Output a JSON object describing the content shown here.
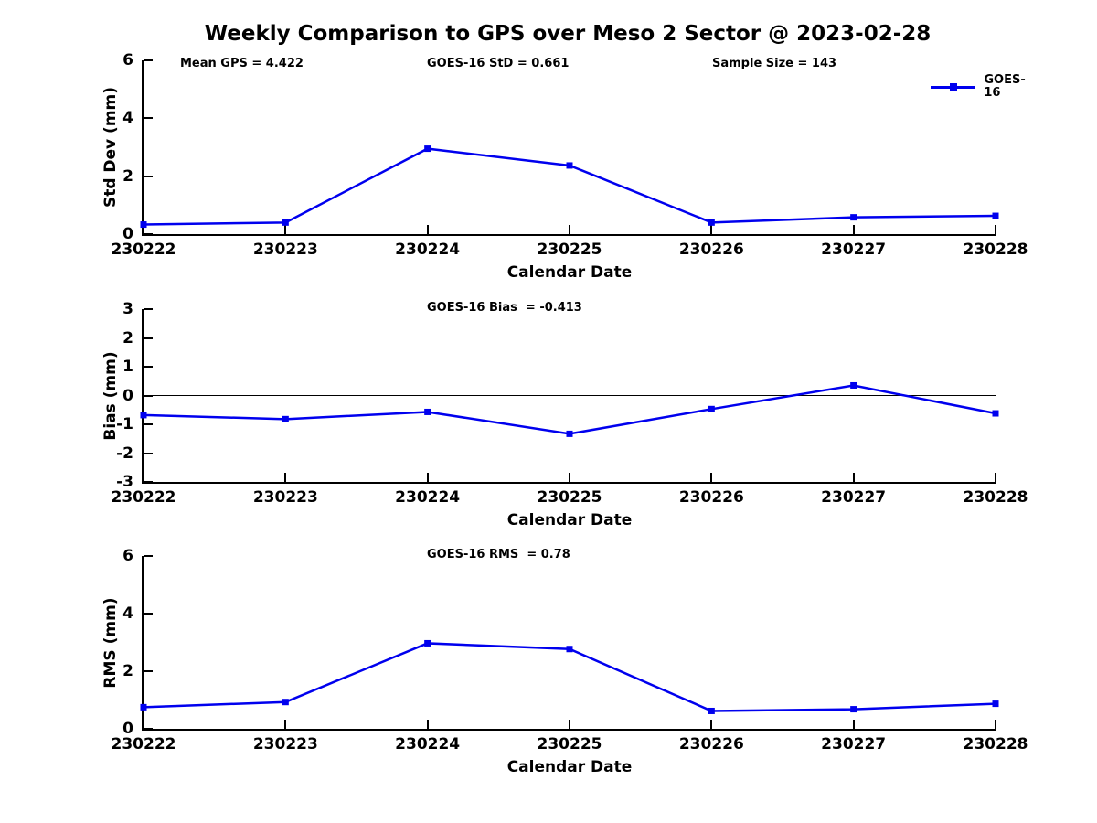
{
  "title": "Weekly Comparison to GPS over Meso 2 Sector @ 2023-02-28",
  "colors": {
    "series": "#0000EE",
    "axis": "#000000",
    "text": "#000000",
    "background": "#ffffff"
  },
  "legend": {
    "label": "GOES-16"
  },
  "chart_data": [
    {
      "type": "line",
      "name": "std-dev-panel",
      "annotations": [
        "Mean GPS = 4.422",
        "GOES-16 StD = 0.661",
        "Sample Size = 143"
      ],
      "categories": [
        "230222",
        "230223",
        "230224",
        "230225",
        "230226",
        "230227",
        "230228"
      ],
      "series": [
        {
          "name": "GOES-16",
          "values": [
            0.33,
            0.4,
            2.95,
            2.37,
            0.4,
            0.58,
            0.63
          ]
        }
      ],
      "xlabel": "Calendar Date",
      "ylabel": "Std Dev (mm)",
      "ylim": [
        0,
        6
      ],
      "yticks": [
        0,
        2,
        4,
        6
      ],
      "grid": false,
      "legend_visible": true,
      "legend_position": "top-right",
      "zero_line": false
    },
    {
      "type": "line",
      "name": "bias-panel",
      "annotations": [
        "GOES-16 Bias  = -0.413"
      ],
      "categories": [
        "230222",
        "230223",
        "230224",
        "230225",
        "230226",
        "230227",
        "230228"
      ],
      "series": [
        {
          "name": "GOES-16",
          "values": [
            -0.68,
            -0.82,
            -0.57,
            -1.33,
            -0.47,
            0.35,
            -0.62
          ]
        }
      ],
      "xlabel": "Calendar Date",
      "ylabel": "Bias (mm)",
      "ylim": [
        -3,
        3
      ],
      "yticks": [
        3,
        2,
        1,
        0,
        -1,
        -2,
        -3
      ],
      "grid": false,
      "legend_visible": false,
      "zero_line": true
    },
    {
      "type": "line",
      "name": "rms-panel",
      "annotations": [
        "GOES-16 RMS  = 0.78"
      ],
      "categories": [
        "230222",
        "230223",
        "230224",
        "230225",
        "230226",
        "230227",
        "230228"
      ],
      "series": [
        {
          "name": "GOES-16",
          "values": [
            0.75,
            0.93,
            2.97,
            2.77,
            0.62,
            0.68,
            0.87
          ]
        }
      ],
      "xlabel": "Calendar Date",
      "ylabel": "RMS (mm)",
      "ylim": [
        0,
        6
      ],
      "yticks": [
        0,
        2,
        4,
        6
      ],
      "grid": false,
      "legend_visible": false,
      "zero_line": false
    }
  ]
}
